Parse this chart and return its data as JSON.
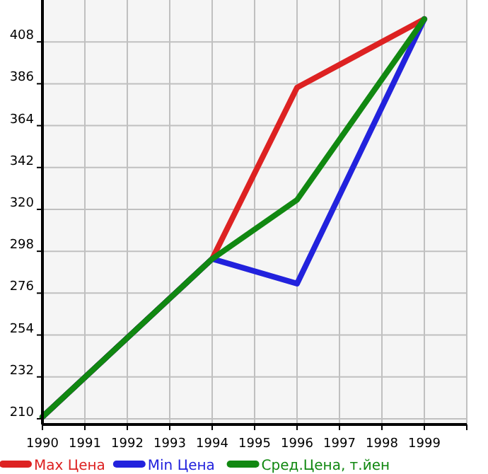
{
  "chart_data": {
    "type": "line",
    "x": [
      1990,
      1994,
      1996,
      1999
    ],
    "series": [
      {
        "name": "Max Цена",
        "color": "#dd2222",
        "values": [
          211,
          294,
          384,
          420
        ]
      },
      {
        "name": "Min Цена",
        "color": "#2222dd",
        "values": [
          211,
          294,
          281,
          420
        ]
      },
      {
        "name": "Сред.Цена, т.йен",
        "color": "#118811",
        "values": [
          211,
          294,
          325,
          420
        ]
      }
    ],
    "xlim": [
      1990,
      2000
    ],
    "xticks": [
      1990,
      1991,
      1992,
      1993,
      1994,
      1995,
      1996,
      1997,
      1998,
      1999,
      {
        "value": 2000,
        "label": null
      }
    ],
    "ylim": [
      207,
      430
    ],
    "yticks": [
      210,
      232,
      254,
      276,
      298,
      320,
      342,
      364,
      386,
      408
    ],
    "grid": true,
    "legend": "bottom",
    "marker": "none",
    "line_style": "solid"
  }
}
